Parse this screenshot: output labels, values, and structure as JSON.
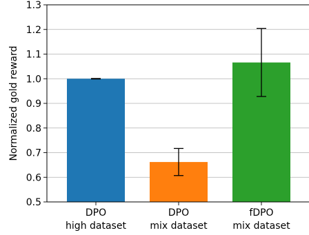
{
  "chart_data": {
    "type": "bar",
    "title": "",
    "xlabel": "",
    "ylabel": "Normalized gold reward",
    "ylim": [
      0.5,
      1.3
    ],
    "yticks": [
      "0.5",
      "0.6",
      "0.7",
      "0.8",
      "0.9",
      "1.0",
      "1.1",
      "1.2",
      "1.3"
    ],
    "grid": "horizontal",
    "categories": [
      {
        "line1": "DPO",
        "line2": "high dataset"
      },
      {
        "line1": "DPO",
        "line2": "mix dataset"
      },
      {
        "line1": "fDPO",
        "line2": "mix dataset"
      }
    ],
    "values": [
      1.0,
      0.662,
      1.066
    ],
    "errors": [
      {
        "low": 0.999,
        "high": 1.001
      },
      {
        "low": 0.607,
        "high": 0.717
      },
      {
        "low": 0.928,
        "high": 1.204
      }
    ],
    "colors": [
      "#1f77b4",
      "#ff7f0e",
      "#2ca02c"
    ]
  }
}
